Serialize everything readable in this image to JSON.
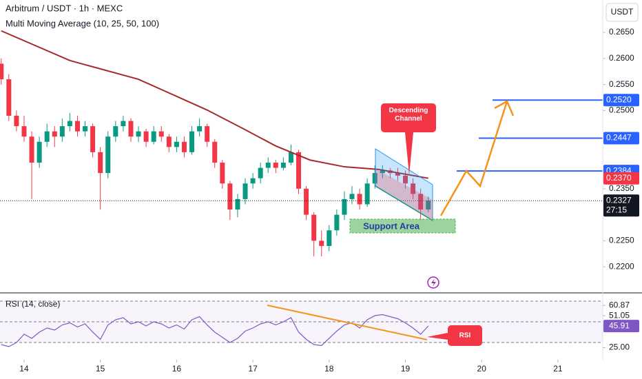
{
  "chart_data": [
    {
      "type": "candlestick",
      "title": "Arbitrum / USDT · 1h · MEXC",
      "subtitle": "Multi Moving Average (10, 25, 50, 100)",
      "currency": "USDT",
      "x": [
        13.7,
        13.8,
        13.9,
        14.0,
        14.1,
        14.2,
        14.3,
        14.4,
        14.5,
        14.6,
        14.7,
        14.8,
        14.9,
        15.0,
        15.1,
        15.2,
        15.3,
        15.4,
        15.5,
        15.6,
        15.7,
        15.8,
        15.9,
        16.0,
        16.1,
        16.2,
        16.3,
        16.4,
        16.5,
        16.6,
        16.7,
        16.8,
        16.9,
        17.0,
        17.1,
        17.2,
        17.3,
        17.4,
        17.5,
        17.6,
        17.7,
        17.8,
        17.9,
        18.0,
        18.1,
        18.2,
        18.3,
        18.4,
        18.5,
        18.6,
        18.7,
        18.8,
        18.9,
        19.0,
        19.1,
        19.2,
        19.3
      ],
      "candles": [
        [
          0.259,
          0.26,
          0.255,
          0.256
        ],
        [
          0.256,
          0.257,
          0.248,
          0.249
        ],
        [
          0.249,
          0.25,
          0.246,
          0.247
        ],
        [
          0.247,
          0.249,
          0.244,
          0.245
        ],
        [
          0.245,
          0.246,
          0.233,
          0.24
        ],
        [
          0.24,
          0.245,
          0.239,
          0.244
        ],
        [
          0.244,
          0.2475,
          0.243,
          0.246
        ],
        [
          0.246,
          0.247,
          0.243,
          0.245
        ],
        [
          0.245,
          0.2485,
          0.244,
          0.247
        ],
        [
          0.247,
          0.2495,
          0.246,
          0.248
        ],
        [
          0.248,
          0.249,
          0.245,
          0.246
        ],
        [
          0.246,
          0.248,
          0.245,
          0.247
        ],
        [
          0.247,
          0.2475,
          0.241,
          0.242
        ],
        [
          0.242,
          0.243,
          0.231,
          0.238
        ],
        [
          0.238,
          0.246,
          0.237,
          0.245
        ],
        [
          0.245,
          0.248,
          0.244,
          0.247
        ],
        [
          0.247,
          0.249,
          0.246,
          0.248
        ],
        [
          0.248,
          0.2485,
          0.244,
          0.245
        ],
        [
          0.245,
          0.247,
          0.244,
          0.246
        ],
        [
          0.246,
          0.2465,
          0.243,
          0.244
        ],
        [
          0.244,
          0.247,
          0.2435,
          0.246
        ],
        [
          0.246,
          0.247,
          0.244,
          0.245
        ],
        [
          0.245,
          0.2455,
          0.242,
          0.243
        ],
        [
          0.243,
          0.245,
          0.242,
          0.244
        ],
        [
          0.244,
          0.245,
          0.241,
          0.242
        ],
        [
          0.242,
          0.247,
          0.2415,
          0.246
        ],
        [
          0.246,
          0.2485,
          0.245,
          0.247
        ],
        [
          0.247,
          0.2475,
          0.243,
          0.244
        ],
        [
          0.244,
          0.2445,
          0.239,
          0.24
        ],
        [
          0.24,
          0.2405,
          0.235,
          0.236
        ],
        [
          0.236,
          0.2365,
          0.229,
          0.231
        ],
        [
          0.231,
          0.234,
          0.2295,
          0.233
        ],
        [
          0.233,
          0.237,
          0.232,
          0.236
        ],
        [
          0.236,
          0.238,
          0.235,
          0.237
        ],
        [
          0.237,
          0.24,
          0.236,
          0.239
        ],
        [
          0.239,
          0.241,
          0.238,
          0.24
        ],
        [
          0.24,
          0.2405,
          0.238,
          0.239
        ],
        [
          0.239,
          0.241,
          0.2385,
          0.24
        ],
        [
          0.24,
          0.2435,
          0.2395,
          0.242
        ],
        [
          0.242,
          0.2425,
          0.234,
          0.235
        ],
        [
          0.235,
          0.2355,
          0.229,
          0.23
        ],
        [
          0.23,
          0.2305,
          0.222,
          0.225
        ],
        [
          0.225,
          0.227,
          0.222,
          0.224
        ],
        [
          0.224,
          0.228,
          0.223,
          0.227
        ],
        [
          0.227,
          0.231,
          0.226,
          0.23
        ],
        [
          0.23,
          0.2345,
          0.229,
          0.233
        ],
        [
          0.233,
          0.2355,
          0.232,
          0.234
        ],
        [
          0.234,
          0.235,
          0.231,
          0.232
        ],
        [
          0.232,
          0.237,
          0.2315,
          0.236
        ],
        [
          0.236,
          0.2395,
          0.235,
          0.238
        ],
        [
          0.238,
          0.2395,
          0.237,
          0.2385
        ],
        [
          0.2385,
          0.239,
          0.237,
          0.238
        ],
        [
          0.238,
          0.239,
          0.2365,
          0.2375
        ],
        [
          0.2375,
          0.2385,
          0.235,
          0.236
        ],
        [
          0.236,
          0.237,
          0.233,
          0.234
        ],
        [
          0.234,
          0.235,
          0.229,
          0.231
        ],
        [
          0.231,
          0.2335,
          0.2305,
          0.2327
        ]
      ],
      "colors": {
        "up": "#089981",
        "down": "#f23645"
      },
      "moving_average": {
        "x": [
          13.7,
          14.6,
          15.5,
          16.4,
          16.85,
          17.3,
          17.75,
          18.2,
          18.65,
          19.3
        ],
        "values": [
          0.2653,
          0.2596,
          0.256,
          0.2501,
          0.2467,
          0.2432,
          0.2405,
          0.2392,
          0.2387,
          0.237
        ],
        "color": "#a52a2a"
      },
      "xlim": [
        13.684,
        21.588
      ],
      "xticks": [
        14,
        15,
        16,
        17,
        18,
        19,
        20,
        21
      ],
      "ylim": [
        0.215,
        0.27122
      ],
      "yticks": [
        {
          "value": 0.265,
          "label": "0.2650"
        },
        {
          "value": 0.26,
          "label": "0.2600"
        },
        {
          "value": 0.255,
          "label": "0.2550"
        },
        {
          "value": 0.25,
          "label": "0.2500"
        },
        {
          "value": 0.235,
          "label": "0.2350"
        },
        {
          "value": 0.225,
          "label": "0.2250"
        },
        {
          "value": 0.22,
          "label": "0.2200"
        }
      ],
      "levels": [
        {
          "value": 0.252,
          "label": "0.2520"
        },
        {
          "value": 0.2447,
          "label": "0.2447"
        },
        {
          "value": 0.2384,
          "label": "0.2384"
        }
      ],
      "level_color": "#2962ff",
      "ma_label": {
        "value": 0.237,
        "label": "0.2370"
      },
      "last_price": {
        "value": 0.2327,
        "label": "0.2327",
        "countdown": "27:15"
      },
      "annotations": {
        "channel": "Descending Channel",
        "support": "Support Area"
      }
    },
    {
      "type": "line",
      "title": "RSI (14, close)",
      "x": [
        13.7,
        13.8,
        13.9,
        14.0,
        14.1,
        14.2,
        14.3,
        14.4,
        14.5,
        14.6,
        14.7,
        14.8,
        14.9,
        15.0,
        15.1,
        15.2,
        15.3,
        15.4,
        15.5,
        15.6,
        15.7,
        15.8,
        15.9,
        16.0,
        16.1,
        16.2,
        16.3,
        16.4,
        16.5,
        16.6,
        16.7,
        16.8,
        16.9,
        17.0,
        17.1,
        17.2,
        17.3,
        17.4,
        17.5,
        17.6,
        17.7,
        17.8,
        17.9,
        18.0,
        18.1,
        18.2,
        18.3,
        18.4,
        18.5,
        18.6,
        18.7,
        18.8,
        18.9,
        19.0,
        19.1,
        19.2,
        19.3
      ],
      "values": [
        28,
        26,
        30,
        38,
        34,
        40,
        44,
        42,
        47,
        49,
        45,
        48,
        40,
        33,
        47,
        52,
        54,
        48,
        50,
        46,
        50,
        48,
        44,
        47,
        43,
        52,
        55,
        47,
        40,
        35,
        30,
        34,
        41,
        44,
        48,
        50,
        47,
        50,
        54,
        40,
        33,
        28,
        27,
        34,
        41,
        47,
        49,
        44,
        52,
        56,
        57,
        55,
        53,
        49,
        44,
        38,
        45.91
      ],
      "color": "#7e57c2",
      "ylim": [
        13.33,
        78
      ],
      "yticks": [
        {
          "value": 25,
          "label": "25.00"
        }
      ],
      "bands": [
        70,
        50,
        30
      ],
      "markers": [
        60.87,
        51.05,
        45.91
      ],
      "annotation": "RSI"
    }
  ]
}
